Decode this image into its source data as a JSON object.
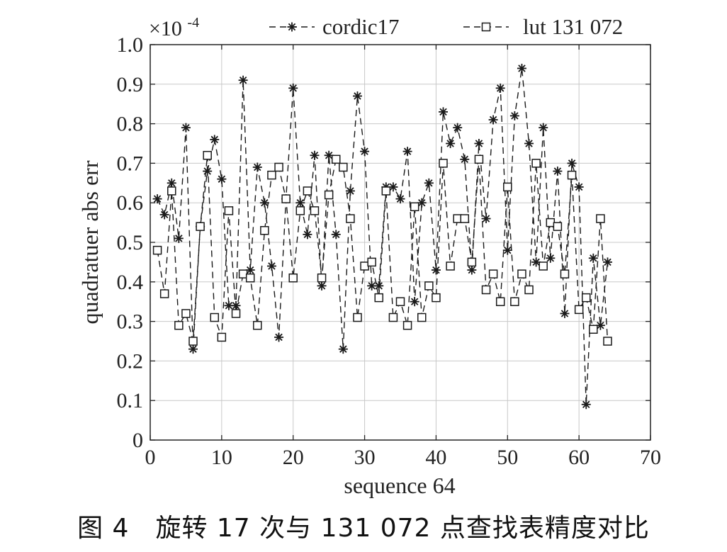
{
  "caption": "图 4　旋转 17 次与 131 072 点查找表精度对比",
  "chart_data": {
    "type": "line",
    "xlabel": "sequence 64",
    "ylabel": "quadratuer abs err",
    "exponent_base": "×10",
    "exponent_power": "-4",
    "xlim": [
      0,
      70
    ],
    "ylim": [
      0,
      1.0
    ],
    "xticks": [
      0,
      10,
      20,
      30,
      40,
      50,
      60,
      70
    ],
    "yticks": [
      0,
      0.1,
      0.2,
      0.3,
      0.4,
      0.5,
      0.6,
      0.7,
      0.8,
      0.9,
      1.0
    ],
    "ytick_labels": [
      "0",
      "0.1",
      "0.2",
      "0.3",
      "0.4",
      "0.5",
      "0.6",
      "0.7",
      "0.8",
      "0.9",
      "1.0"
    ],
    "grid": true,
    "legend_position": "top",
    "line_color": "#1a1a1a",
    "x": [
      1,
      2,
      3,
      4,
      5,
      6,
      7,
      8,
      9,
      10,
      11,
      12,
      13,
      14,
      15,
      16,
      17,
      18,
      19,
      20,
      21,
      22,
      23,
      24,
      25,
      26,
      27,
      28,
      29,
      30,
      31,
      32,
      33,
      34,
      35,
      36,
      37,
      38,
      39,
      40,
      41,
      42,
      43,
      44,
      45,
      46,
      47,
      48,
      49,
      50,
      51,
      52,
      53,
      54,
      55,
      56,
      57,
      58,
      59,
      60,
      61,
      62,
      63,
      64
    ],
    "series": [
      {
        "name": "cordic17",
        "marker": "asterisk",
        "values": [
          0.61,
          0.57,
          0.65,
          0.51,
          0.79,
          0.23,
          0.54,
          0.68,
          0.76,
          0.66,
          0.34,
          0.34,
          0.91,
          0.43,
          0.69,
          0.6,
          0.44,
          0.26,
          0.61,
          0.89,
          0.6,
          0.52,
          0.72,
          0.39,
          0.72,
          0.52,
          0.23,
          0.63,
          0.87,
          0.73,
          0.39,
          0.39,
          0.64,
          0.64,
          0.61,
          0.73,
          0.35,
          0.6,
          0.65,
          0.43,
          0.83,
          0.75,
          0.79,
          0.71,
          0.43,
          0.75,
          0.56,
          0.81,
          0.89,
          0.48,
          0.82,
          0.94,
          0.75,
          0.45,
          0.79,
          0.46,
          0.68,
          0.32,
          0.7,
          0.64,
          0.09,
          0.46,
          0.29,
          0.45
        ]
      },
      {
        "name": "lut 131 072",
        "marker": "square",
        "values": [
          0.48,
          0.37,
          0.63,
          0.29,
          0.32,
          0.25,
          0.54,
          0.72,
          0.31,
          0.26,
          0.58,
          0.32,
          0.42,
          0.41,
          0.29,
          0.53,
          0.67,
          0.69,
          0.61,
          0.41,
          0.58,
          0.63,
          0.58,
          0.41,
          0.62,
          0.71,
          0.69,
          0.56,
          0.31,
          0.44,
          0.45,
          0.36,
          0.63,
          0.31,
          0.35,
          0.29,
          0.59,
          0.31,
          0.39,
          0.36,
          0.7,
          0.44,
          0.56,
          0.56,
          0.45,
          0.71,
          0.38,
          0.42,
          0.35,
          0.64,
          0.35,
          0.42,
          0.38,
          0.7,
          0.44,
          0.55,
          0.54,
          0.42,
          0.67,
          0.33,
          0.36,
          0.28,
          0.56,
          0.25
        ]
      }
    ]
  }
}
